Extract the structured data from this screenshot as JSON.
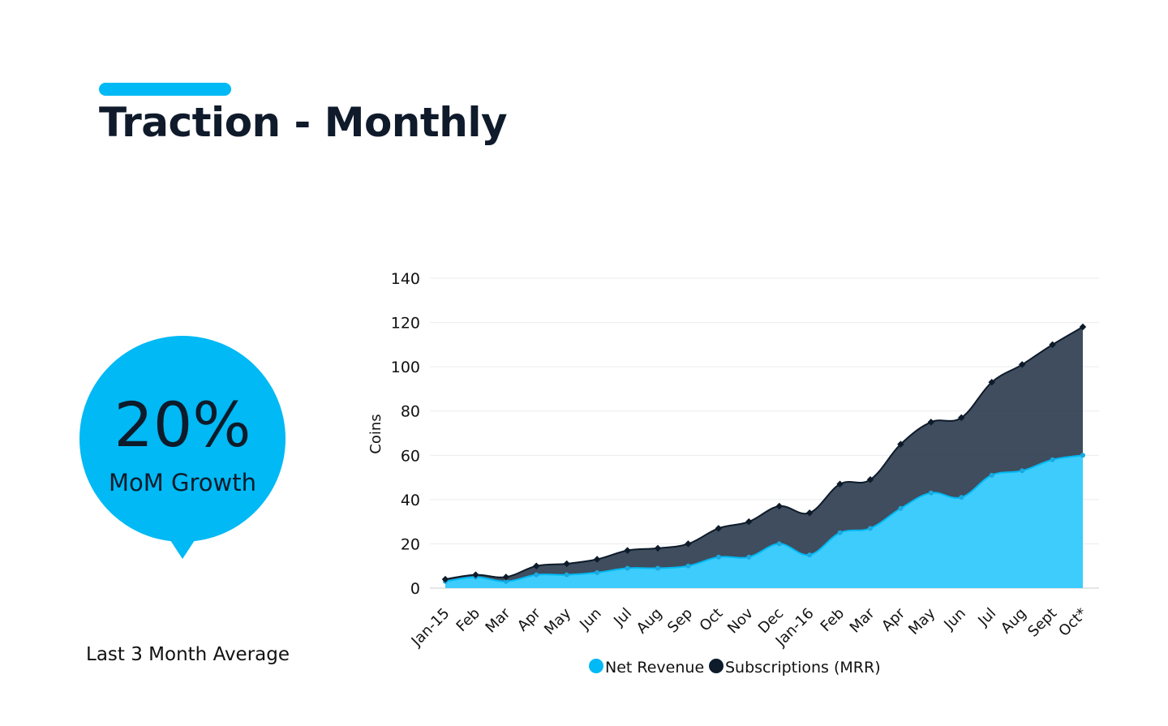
{
  "header": {
    "title": "Traction - Monthly",
    "accent_color": "#00b9f5"
  },
  "kpi": {
    "value": "20%",
    "label": "MoM Growth",
    "caption": "Last 3 Month Average",
    "bubble_color": "#00b9f5"
  },
  "chart_data": {
    "type": "area",
    "stacked": true,
    "title": "",
    "xlabel": "",
    "ylabel": "Coins",
    "ylim": [
      0,
      140
    ],
    "yticks": [
      0,
      20,
      40,
      60,
      80,
      100,
      120,
      140
    ],
    "grid": true,
    "legend_position": "bottom",
    "categories": [
      "Jan-15",
      "Feb",
      "Mar",
      "Apr",
      "May",
      "Jun",
      "Jul",
      "Aug",
      "Sep",
      "Oct",
      "Nov",
      "Dec",
      "Jan-16",
      "Feb",
      "Mar",
      "Apr",
      "May",
      "Jun",
      "Jul",
      "Aug",
      "Sept",
      "Oct*"
    ],
    "series": [
      {
        "name": "Net Revenue",
        "color": "#00b9f5",
        "values": [
          3,
          5,
          3,
          6,
          6,
          7,
          9,
          9,
          10,
          14,
          14,
          20,
          15,
          25,
          27,
          36,
          43,
          41,
          51,
          53,
          58,
          60
        ]
      },
      {
        "name": "Subscriptions (MRR)",
        "color": "#0d1b2a",
        "values": [
          1,
          1,
          2,
          4,
          5,
          6,
          8,
          9,
          10,
          13,
          16,
          17,
          19,
          22,
          22,
          29,
          32,
          36,
          42,
          48,
          52,
          58
        ]
      }
    ]
  }
}
